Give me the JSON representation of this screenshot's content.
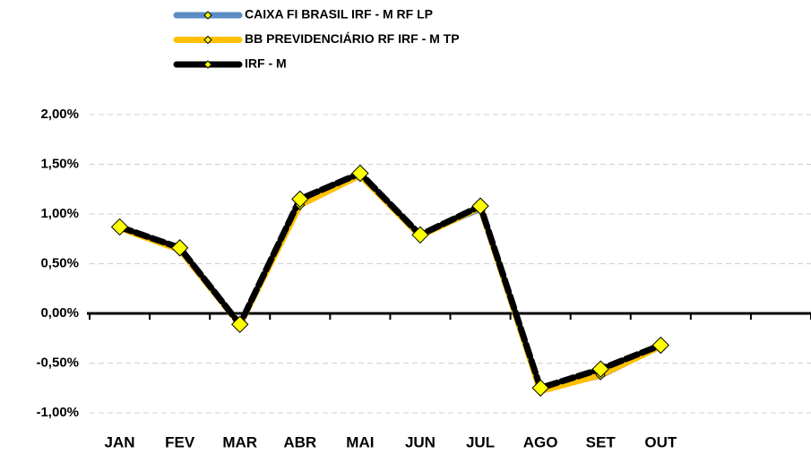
{
  "chart_data": {
    "type": "line",
    "categories": [
      "JAN",
      "FEV",
      "MAR",
      "ABR",
      "MAI",
      "JUN",
      "JUL",
      "AGO",
      "SET",
      "OUT",
      null,
      null
    ],
    "series": [
      {
        "name": "CAIXA FI BRASIL IRF - M RF LP",
        "color": "#5b8cc4",
        "marker_fill": "#ffff00",
        "values": [
          0.86,
          0.64,
          -0.1,
          1.1,
          1.4,
          0.79,
          1.05,
          -0.76,
          -0.63,
          -0.33,
          null,
          null
        ]
      },
      {
        "name": "BB PREVIDENCIÁRIO RF IRF - M TP",
        "color": "#ffc000",
        "marker_fill": "#ffff00",
        "values": [
          0.86,
          0.64,
          -0.11,
          1.09,
          1.39,
          0.78,
          1.07,
          -0.78,
          -0.62,
          -0.33,
          null,
          null
        ]
      },
      {
        "name": "IRF - M",
        "color": "#000000",
        "marker_fill": "#ffff00",
        "values": [
          0.87,
          0.66,
          -0.11,
          1.15,
          1.41,
          0.79,
          1.08,
          -0.75,
          -0.56,
          -0.32,
          null,
          null
        ]
      }
    ],
    "ylim": [
      -1,
      2
    ],
    "yticks": [
      {
        "value": -1,
        "label": "-1,00%"
      },
      {
        "value": -0.5,
        "label": "-0,50%"
      },
      {
        "value": 0,
        "label": "0,00%"
      },
      {
        "value": 0.5,
        "label": "0,50%"
      },
      {
        "value": 1,
        "label": "1,00%"
      },
      {
        "value": 1.5,
        "label": "1,50%"
      },
      {
        "value": 2,
        "label": "2,00%"
      }
    ],
    "grid": true
  }
}
